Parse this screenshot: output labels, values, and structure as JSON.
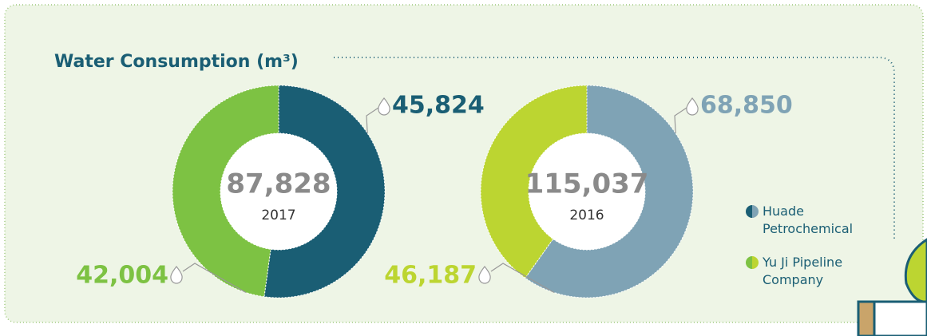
{
  "title": "Water Consumption (m³)",
  "legend": [
    "Huade Petrochemical",
    "Yu Ji Pipeline Company"
  ],
  "chart_data": [
    {
      "type": "donut",
      "center_label": "87,828",
      "subtitle": "2017",
      "values": [
        45824,
        42004
      ],
      "value_labels": [
        "45,824",
        "42,004"
      ],
      "colors": [
        "#1a5e74",
        "#7dc243"
      ]
    },
    {
      "type": "donut",
      "center_label": "115,037",
      "subtitle": "2016",
      "values": [
        68850,
        46187
      ],
      "value_labels": [
        "68,850",
        "46,187"
      ],
      "colors": [
        "#7fa3b5",
        "#bcd531"
      ]
    }
  ]
}
